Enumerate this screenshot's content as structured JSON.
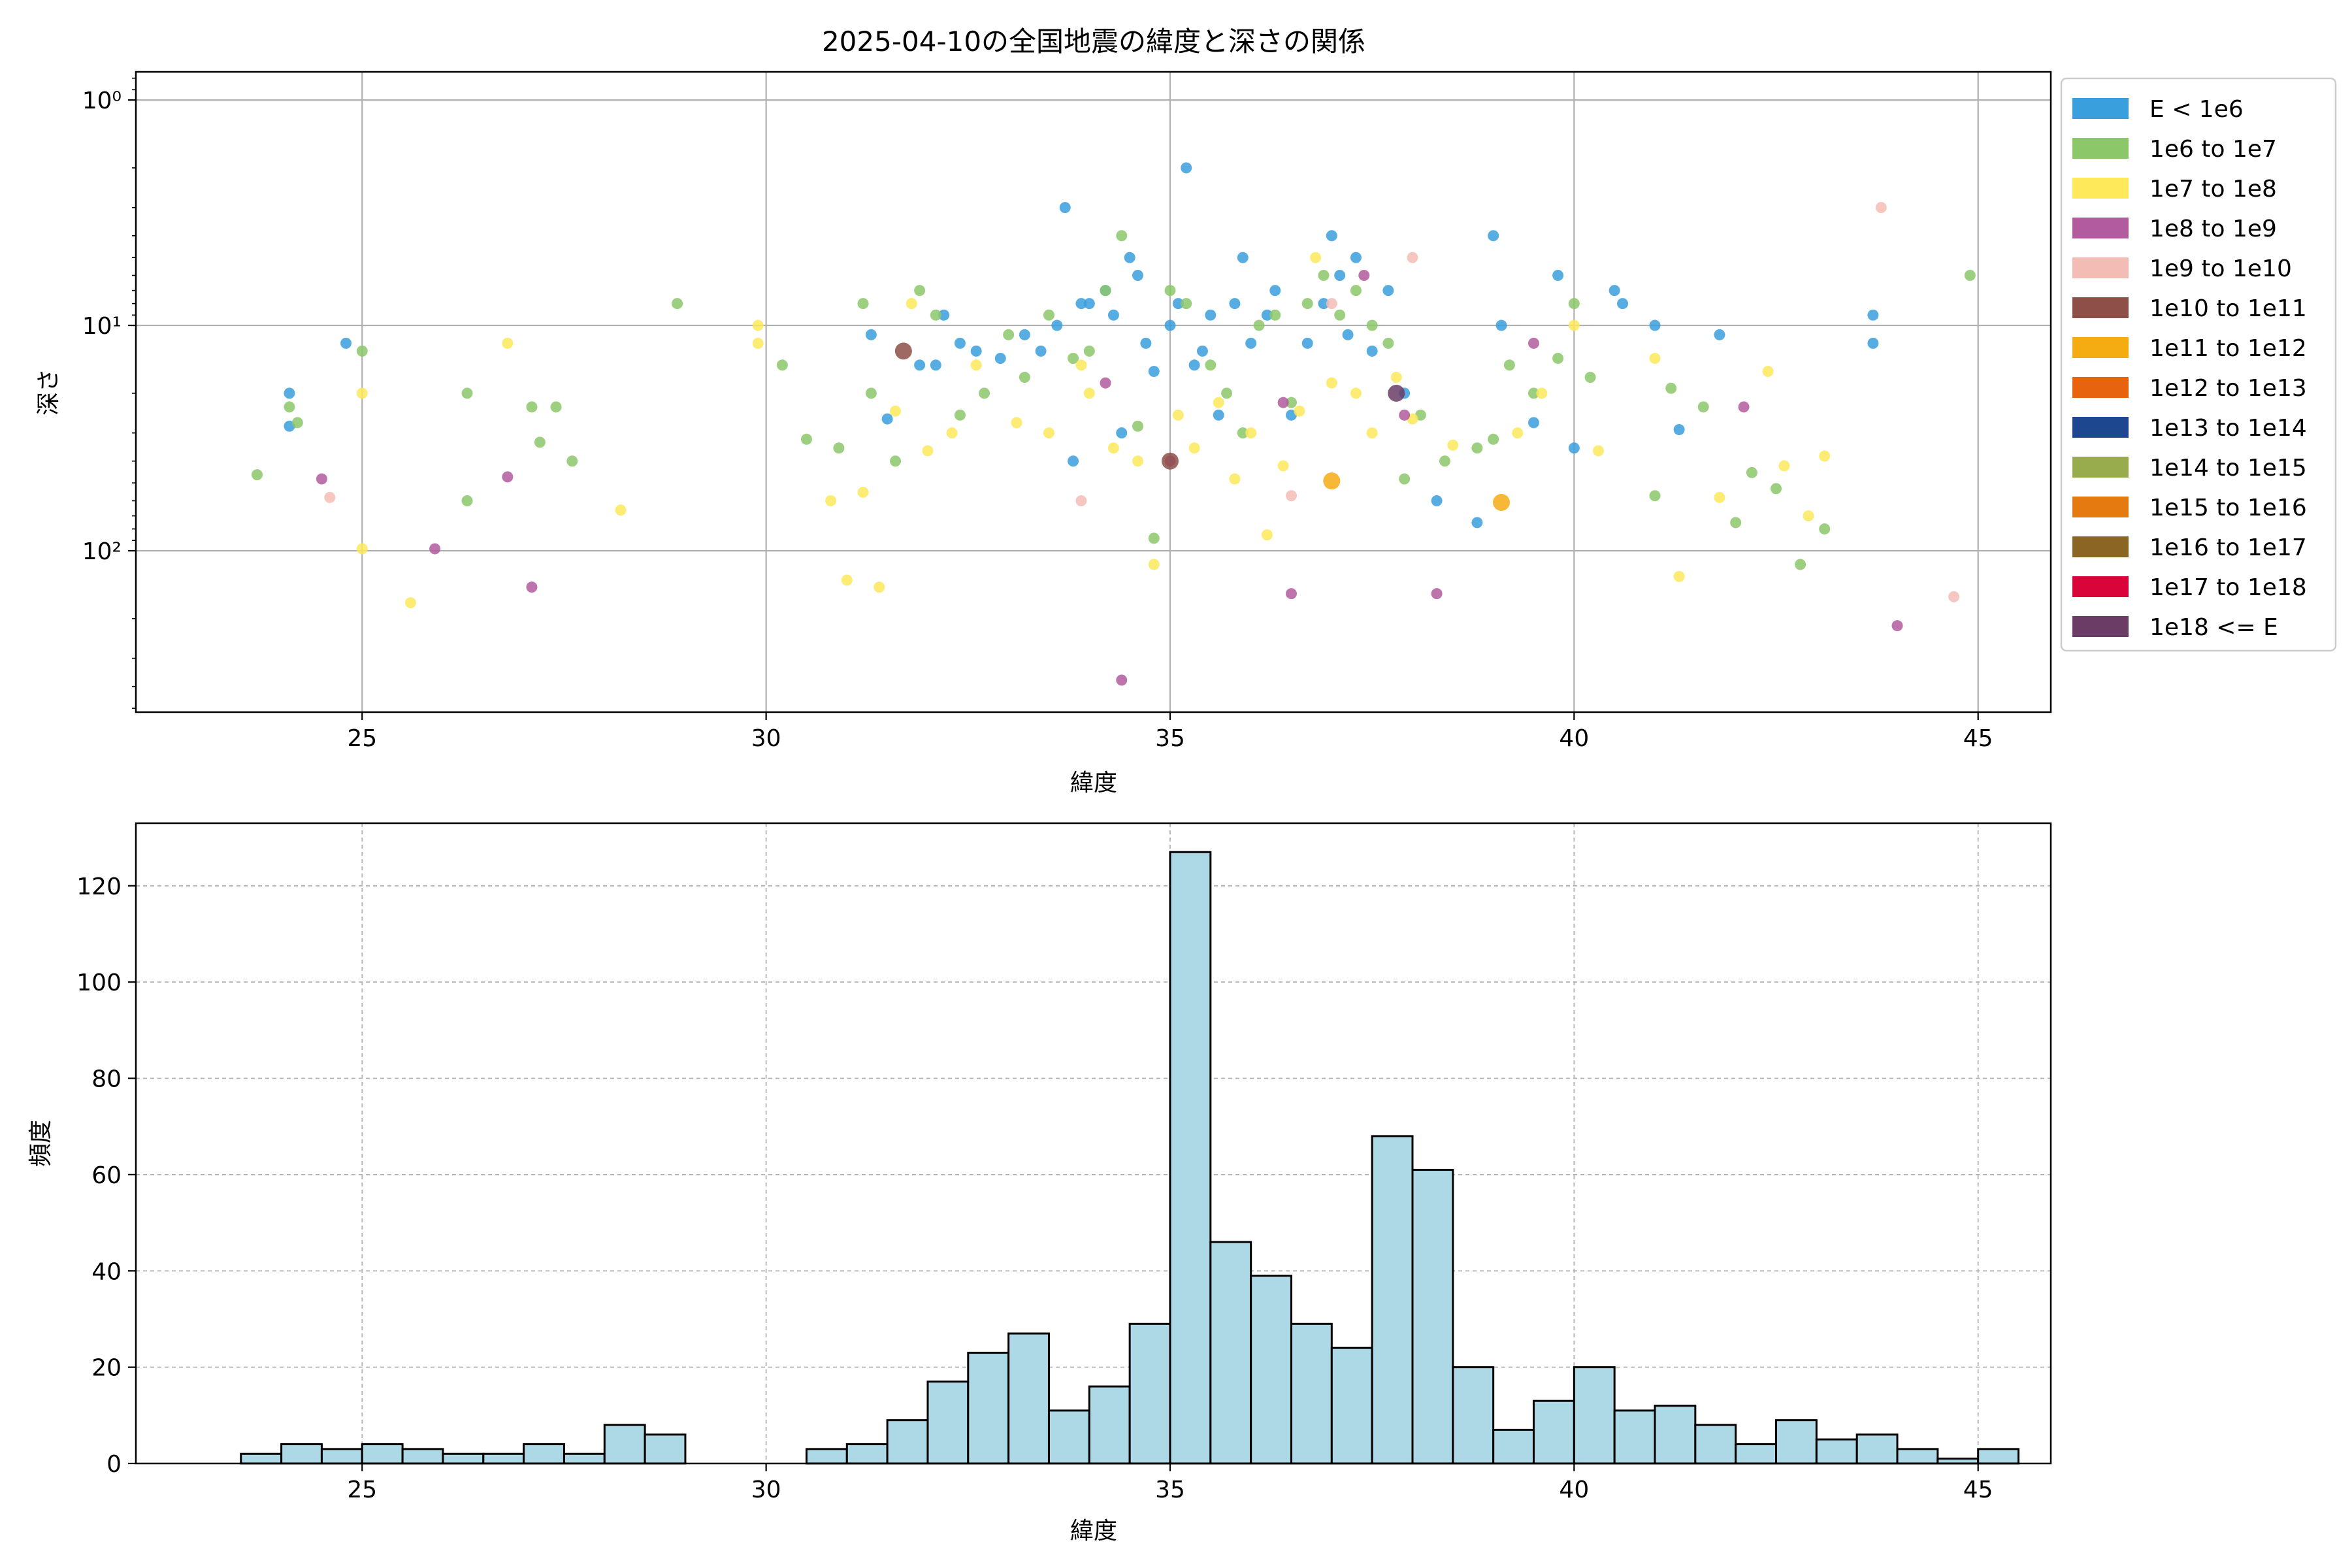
{
  "chart_data": [
    {
      "type": "scatter",
      "title": "2025-04-10の全国地震の緯度と深さの関係",
      "xlabel": "緯度",
      "ylabel": "深さ",
      "xlim": [
        22.2,
        45.9
      ],
      "ylim": [
        0.75,
        520
      ],
      "y_scale": "log",
      "y_inverted": true,
      "grid": true,
      "legend_position": "outside-right",
      "xticks": [
        25,
        30,
        35,
        40,
        45
      ],
      "yticks": [
        {
          "value": 1,
          "label": "10⁰"
        },
        {
          "value": 10,
          "label": "10¹"
        },
        {
          "value": 100,
          "label": "10²"
        }
      ],
      "legend": [
        {
          "label": "E < 1e6",
          "color": "#3a9fdd"
        },
        {
          "label": "1e6 to 1e7",
          "color": "#8cc76a"
        },
        {
          "label": "1e7 to 1e8",
          "color": "#fde95a"
        },
        {
          "label": "1e8 to 1e9",
          "color": "#b25c9f"
        },
        {
          "label": "1e9 to 1e10",
          "color": "#f3bdb5"
        },
        {
          "label": "1e10 to 1e11",
          "color": "#8e4f48"
        },
        {
          "label": "1e11 to 1e12",
          "color": "#f5ac13"
        },
        {
          "label": "1e12 to 1e13",
          "color": "#e8630d"
        },
        {
          "label": "1e13 to 1e14",
          "color": "#1d4890"
        },
        {
          "label": "1e14 to 1e15",
          "color": "#98ab4d"
        },
        {
          "label": "1e15 to 1e16",
          "color": "#e57a10"
        },
        {
          "label": "1e16 to 1e17",
          "color": "#8b6524"
        },
        {
          "label": "1e17 to 1e18",
          "color": "#d8043a"
        },
        {
          "label": "1e18 <= E",
          "color": "#6b3c66"
        }
      ],
      "series": [
        {
          "class": 0,
          "points": [
            [
              24.1,
              20
            ],
            [
              24.1,
              28
            ],
            [
              24.8,
              12
            ],
            [
              31.3,
              11
            ],
            [
              31.5,
              26
            ],
            [
              31.9,
              15
            ],
            [
              32.1,
              15
            ],
            [
              32.2,
              9
            ],
            [
              32.4,
              12
            ],
            [
              32.6,
              13
            ],
            [
              32.9,
              14
            ],
            [
              33.2,
              11
            ],
            [
              33.4,
              13
            ],
            [
              33.6,
              10
            ],
            [
              33.7,
              3
            ],
            [
              33.8,
              40
            ],
            [
              33.9,
              8
            ],
            [
              34.0,
              8
            ],
            [
              34.2,
              7
            ],
            [
              34.3,
              9
            ],
            [
              34.4,
              30
            ],
            [
              34.5,
              5
            ],
            [
              34.6,
              6
            ],
            [
              34.7,
              12
            ],
            [
              34.8,
              16
            ],
            [
              35.0,
              10
            ],
            [
              35.1,
              8
            ],
            [
              35.2,
              2
            ],
            [
              35.3,
              15
            ],
            [
              35.4,
              13
            ],
            [
              35.5,
              9
            ],
            [
              35.6,
              25
            ],
            [
              35.8,
              8
            ],
            [
              35.9,
              5
            ],
            [
              36.0,
              12
            ],
            [
              36.2,
              9
            ],
            [
              36.3,
              7
            ],
            [
              36.5,
              25
            ],
            [
              36.7,
              12
            ],
            [
              36.9,
              8
            ],
            [
              37.0,
              4
            ],
            [
              37.1,
              6
            ],
            [
              37.2,
              11
            ],
            [
              37.3,
              5
            ],
            [
              37.5,
              13
            ],
            [
              37.7,
              7
            ],
            [
              37.9,
              20
            ],
            [
              38.3,
              60
            ],
            [
              38.8,
              75
            ],
            [
              39.0,
              4
            ],
            [
              39.1,
              10
            ],
            [
              39.5,
              27
            ],
            [
              39.8,
              6
            ],
            [
              40.0,
              35
            ],
            [
              40.5,
              7
            ],
            [
              40.6,
              8
            ],
            [
              41.0,
              10
            ],
            [
              41.3,
              29
            ],
            [
              41.8,
              11
            ],
            [
              43.7,
              9
            ],
            [
              43.7,
              12
            ]
          ]
        },
        {
          "class": 1,
          "points": [
            [
              23.7,
              46
            ],
            [
              24.1,
              23
            ],
            [
              24.2,
              27
            ],
            [
              25.0,
              13
            ],
            [
              26.3,
              20
            ],
            [
              26.3,
              60
            ],
            [
              27.1,
              23
            ],
            [
              27.2,
              33
            ],
            [
              27.4,
              23
            ],
            [
              27.6,
              40
            ],
            [
              28.9,
              8
            ],
            [
              30.2,
              15
            ],
            [
              30.5,
              32
            ],
            [
              30.9,
              35
            ],
            [
              31.2,
              8
            ],
            [
              31.3,
              20
            ],
            [
              31.6,
              40
            ],
            [
              31.9,
              7
            ],
            [
              32.1,
              9
            ],
            [
              32.4,
              25
            ],
            [
              32.7,
              20
            ],
            [
              33.0,
              11
            ],
            [
              33.2,
              17
            ],
            [
              33.5,
              9
            ],
            [
              33.8,
              14
            ],
            [
              34.0,
              13
            ],
            [
              34.2,
              7
            ],
            [
              34.4,
              4
            ],
            [
              34.6,
              28
            ],
            [
              34.8,
              88
            ],
            [
              35.0,
              7
            ],
            [
              35.2,
              8
            ],
            [
              35.5,
              15
            ],
            [
              35.7,
              20
            ],
            [
              35.9,
              30
            ],
            [
              36.1,
              10
            ],
            [
              36.3,
              9
            ],
            [
              36.5,
              22
            ],
            [
              36.7,
              8
            ],
            [
              36.9,
              6
            ],
            [
              37.1,
              9
            ],
            [
              37.3,
              7
            ],
            [
              37.5,
              10
            ],
            [
              37.7,
              12
            ],
            [
              37.9,
              48
            ],
            [
              38.1,
              25
            ],
            [
              38.4,
              40
            ],
            [
              38.8,
              35
            ],
            [
              39.0,
              32
            ],
            [
              39.2,
              15
            ],
            [
              39.5,
              20
            ],
            [
              39.8,
              14
            ],
            [
              40.0,
              8
            ],
            [
              40.2,
              17
            ],
            [
              41.0,
              57
            ],
            [
              41.2,
              19
            ],
            [
              41.6,
              23
            ],
            [
              42.0,
              75
            ],
            [
              42.2,
              45
            ],
            [
              42.5,
              53
            ],
            [
              42.8,
              115
            ],
            [
              43.1,
              80
            ],
            [
              44.9,
              6
            ]
          ]
        },
        {
          "class": 2,
          "points": [
            [
              25.0,
              20
            ],
            [
              25.0,
              98
            ],
            [
              25.6,
              170
            ],
            [
              26.8,
              12
            ],
            [
              28.2,
              66
            ],
            [
              29.9,
              12
            ],
            [
              29.9,
              10
            ],
            [
              30.8,
              60
            ],
            [
              31.0,
              135
            ],
            [
              31.2,
              55
            ],
            [
              31.4,
              145
            ],
            [
              31.6,
              24
            ],
            [
              31.8,
              8
            ],
            [
              32.0,
              36
            ],
            [
              32.3,
              30
            ],
            [
              32.6,
              15
            ],
            [
              33.1,
              27
            ],
            [
              33.5,
              30
            ],
            [
              33.9,
              15
            ],
            [
              34.0,
              20
            ],
            [
              34.3,
              35
            ],
            [
              34.6,
              40
            ],
            [
              34.8,
              115
            ],
            [
              35.1,
              25
            ],
            [
              35.3,
              35
            ],
            [
              35.6,
              22
            ],
            [
              35.8,
              48
            ],
            [
              36.0,
              30
            ],
            [
              36.2,
              85
            ],
            [
              36.4,
              42
            ],
            [
              36.6,
              24
            ],
            [
              36.8,
              5
            ],
            [
              37.0,
              18
            ],
            [
              37.3,
              20
            ],
            [
              37.5,
              30
            ],
            [
              37.8,
              17
            ],
            [
              38.0,
              26
            ],
            [
              38.5,
              34
            ],
            [
              39.3,
              30
            ],
            [
              39.6,
              20
            ],
            [
              40.0,
              10
            ],
            [
              40.3,
              36
            ],
            [
              41.0,
              14
            ],
            [
              41.3,
              130
            ],
            [
              41.8,
              58
            ],
            [
              42.4,
              16
            ],
            [
              42.6,
              42
            ],
            [
              42.9,
              70
            ],
            [
              43.1,
              38
            ]
          ]
        },
        {
          "class": 3,
          "points": [
            [
              24.5,
              48
            ],
            [
              25.9,
              98
            ],
            [
              26.8,
              47
            ],
            [
              27.1,
              145
            ],
            [
              34.2,
              18
            ],
            [
              34.4,
              375
            ],
            [
              35.0,
              40
            ],
            [
              36.4,
              22
            ],
            [
              36.5,
              155
            ],
            [
              37.4,
              6
            ],
            [
              37.9,
              25
            ],
            [
              38.3,
              155
            ],
            [
              39.5,
              12
            ],
            [
              42.1,
              23
            ],
            [
              44.0,
              215
            ]
          ]
        },
        {
          "class": 4,
          "points": [
            [
              24.6,
              58
            ],
            [
              33.9,
              60
            ],
            [
              36.5,
              57
            ],
            [
              37.0,
              8
            ],
            [
              38.0,
              5
            ],
            [
              43.8,
              3
            ],
            [
              44.7,
              160
            ]
          ]
        },
        {
          "class": 5,
          "points": [
            [
              31.7,
              13
            ],
            [
              35.0,
              40
            ]
          ]
        },
        {
          "class": 6,
          "points": [
            [
              37.0,
              49
            ],
            [
              39.1,
              61
            ]
          ]
        },
        {
          "class": 13,
          "points": [
            [
              37.8,
              20
            ]
          ]
        }
      ]
    },
    {
      "type": "bar",
      "title": "",
      "xlabel": "緯度",
      "ylabel": "頻度",
      "xlim": [
        22.2,
        45.9
      ],
      "ylim": [
        0,
        133
      ],
      "grid": true,
      "grid_style": "dashed",
      "bar_color": "#add8e6",
      "xticks": [
        25,
        30,
        35,
        40,
        45
      ],
      "yticks": [
        0,
        20,
        40,
        60,
        80,
        100,
        120
      ],
      "bin_start": 23.5,
      "bin_width": 0.5,
      "values": [
        2,
        4,
        3,
        4,
        3,
        2,
        2,
        4,
        2,
        8,
        6,
        0,
        0,
        0,
        3,
        4,
        9,
        17,
        23,
        27,
        11,
        16,
        29,
        127,
        46,
        39,
        29,
        24,
        68,
        61,
        20,
        7,
        13,
        20,
        11,
        12,
        8,
        4,
        9,
        5,
        6,
        3,
        1,
        3
      ]
    }
  ]
}
